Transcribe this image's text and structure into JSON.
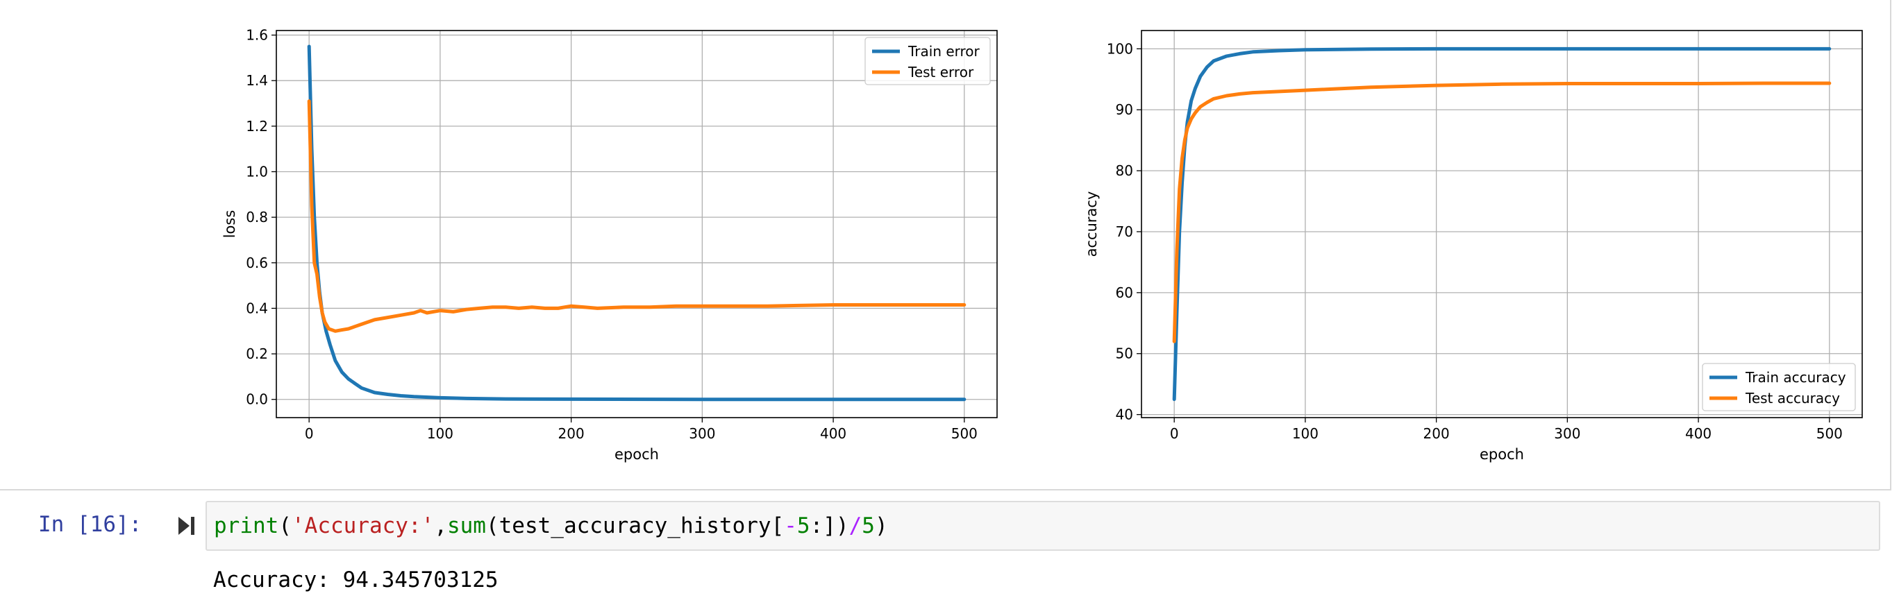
{
  "output": {
    "charts": {
      "left": {
        "xlabel": "epoch",
        "ylabel": "loss",
        "xticks": [
          "0",
          "100",
          "200",
          "300",
          "400",
          "500"
        ],
        "yticks": [
          "0.0",
          "0.2",
          "0.4",
          "0.6",
          "0.8",
          "1.0",
          "1.2",
          "1.4",
          "1.6"
        ],
        "legend": [
          "Train error",
          "Test error"
        ]
      },
      "right": {
        "xlabel": "epoch",
        "ylabel": "accuracy",
        "xticks": [
          "0",
          "100",
          "200",
          "300",
          "400",
          "500"
        ],
        "yticks": [
          "40",
          "50",
          "60",
          "70",
          "80",
          "90",
          "100"
        ],
        "legend": [
          "Train accuracy",
          "Test accuracy"
        ]
      }
    },
    "colors": {
      "train": "#1f77b4",
      "test": "#ff7f0e",
      "grid": "#b0b0b0"
    }
  },
  "cell": {
    "prompt": "In [16]:",
    "code": {
      "t1": "print",
      "t2": "(",
      "t3": "'Accuracy:'",
      "t4": ",",
      "t5": "sum",
      "t6": "(test_accuracy_history[",
      "t7": "-",
      "t8": "5",
      "t9": ":])",
      "t10": "/",
      "t11": "5",
      "t12": ")"
    },
    "output_text": "Accuracy: 94.345703125"
  },
  "chart_data": [
    {
      "type": "line",
      "title": "",
      "xlabel": "epoch",
      "ylabel": "loss",
      "xlim": [
        -25,
        525
      ],
      "ylim": [
        -0.08,
        1.62
      ],
      "grid": true,
      "legend_position": "top-right",
      "series": [
        {
          "name": "Train error",
          "x": [
            0,
            2,
            4,
            6,
            8,
            10,
            13,
            16,
            20,
            25,
            30,
            35,
            40,
            50,
            60,
            70,
            80,
            100,
            120,
            150,
            200,
            300,
            400,
            500
          ],
          "y": [
            1.55,
            1.1,
            0.8,
            0.6,
            0.47,
            0.38,
            0.3,
            0.24,
            0.17,
            0.12,
            0.09,
            0.07,
            0.05,
            0.03,
            0.022,
            0.016,
            0.012,
            0.007,
            0.004,
            0.002,
            0.001,
            0.0,
            0.0,
            0.0
          ]
        },
        {
          "name": "Test error",
          "x": [
            0,
            2,
            4,
            6,
            8,
            10,
            12,
            15,
            20,
            25,
            30,
            35,
            40,
            50,
            60,
            70,
            80,
            85,
            90,
            100,
            110,
            120,
            130,
            140,
            150,
            160,
            170,
            180,
            190,
            200,
            210,
            220,
            240,
            260,
            280,
            300,
            350,
            400,
            450,
            500
          ],
          "y": [
            1.31,
            0.85,
            0.6,
            0.55,
            0.45,
            0.38,
            0.34,
            0.31,
            0.3,
            0.305,
            0.31,
            0.32,
            0.33,
            0.35,
            0.36,
            0.37,
            0.38,
            0.39,
            0.38,
            0.39,
            0.385,
            0.395,
            0.4,
            0.405,
            0.405,
            0.4,
            0.405,
            0.4,
            0.4,
            0.41,
            0.405,
            0.4,
            0.405,
            0.405,
            0.41,
            0.41,
            0.41,
            0.415,
            0.415,
            0.415
          ]
        }
      ]
    },
    {
      "type": "line",
      "title": "",
      "xlabel": "epoch",
      "ylabel": "accuracy",
      "xlim": [
        -25,
        525
      ],
      "ylim": [
        39.5,
        103
      ],
      "grid": true,
      "legend_position": "bottom-right",
      "series": [
        {
          "name": "Train accuracy",
          "x": [
            0,
            2,
            4,
            6,
            8,
            10,
            13,
            16,
            20,
            25,
            30,
            40,
            50,
            60,
            80,
            100,
            150,
            200,
            300,
            400,
            500
          ],
          "y": [
            42.5,
            57,
            70,
            78,
            84,
            88,
            91.5,
            93.5,
            95.5,
            97,
            98,
            98.8,
            99.2,
            99.5,
            99.7,
            99.85,
            99.95,
            100,
            100,
            100,
            100
          ]
        },
        {
          "name": "Test accuracy",
          "x": [
            0,
            2,
            4,
            6,
            8,
            10,
            13,
            16,
            20,
            25,
            30,
            40,
            50,
            60,
            80,
            100,
            120,
            150,
            200,
            250,
            300,
            350,
            400,
            450,
            500
          ],
          "y": [
            52,
            67,
            77,
            82,
            85,
            87,
            88.5,
            89.5,
            90.5,
            91.2,
            91.8,
            92.3,
            92.6,
            92.8,
            93.0,
            93.2,
            93.4,
            93.7,
            94.0,
            94.2,
            94.3,
            94.3,
            94.3,
            94.35,
            94.35
          ]
        }
      ]
    }
  ]
}
